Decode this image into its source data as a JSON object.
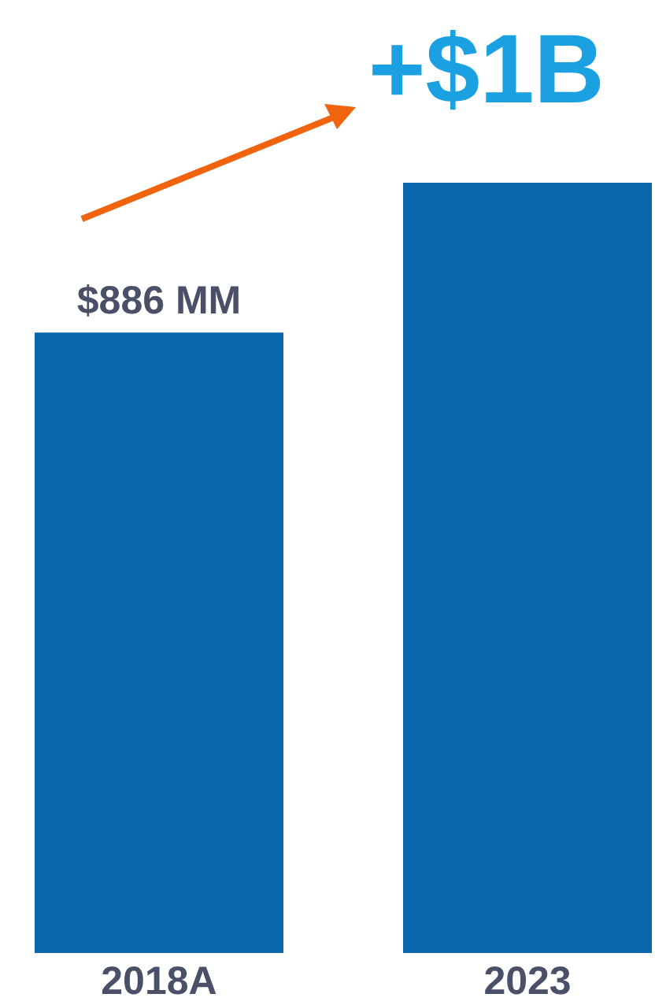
{
  "chart_data": {
    "type": "bar",
    "categories": [
      "2018A",
      "2023"
    ],
    "values": [
      886,
      1100
    ],
    "color": "#0a67ae",
    "value_labels": [
      "$886 MM",
      null
    ],
    "annotations": [
      "+$1B"
    ]
  }
}
